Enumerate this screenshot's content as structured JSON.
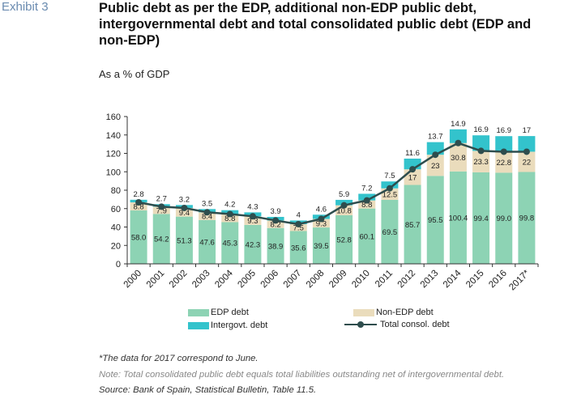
{
  "header": {
    "exhibit": "Exhibit 3",
    "title": "Public debt as per the EDP, additional non-EDP public debt, intergovernmental debt and total consolidated public debt (EDP and non-EDP)",
    "subtitle": "As a % of GDP"
  },
  "chart_data": {
    "type": "bar",
    "stacked": true,
    "categories": [
      "2000",
      "2001",
      "2002",
      "2003",
      "2004",
      "2005",
      "2006",
      "2007",
      "2008",
      "2009",
      "2010",
      "2011",
      "2012",
      "2013",
      "2014",
      "2015",
      "2016",
      "2017*"
    ],
    "series": [
      {
        "name": "EDP debt",
        "color": "#8dd3b4",
        "values": [
          58.0,
          54.2,
          51.3,
          47.6,
          45.3,
          42.3,
          38.9,
          35.6,
          39.5,
          52.8,
          60.1,
          69.5,
          85.7,
          95.5,
          100.4,
          99.4,
          99.0,
          99.8
        ]
      },
      {
        "name": "Non-EDP debt",
        "color": "#eadcbc",
        "values": [
          8.8,
          7.9,
          9.4,
          8.4,
          8.8,
          9.3,
          8.2,
          7.5,
          9.3,
          10.8,
          8.8,
          12.5,
          17,
          23,
          30.8,
          23.3,
          22.8,
          22
        ]
      },
      {
        "name": "Intergovt. debt",
        "color": "#33c3cc",
        "values": [
          2.8,
          2.7,
          3.2,
          3.5,
          4.2,
          4.3,
          3.9,
          4,
          4.6,
          5.9,
          7.2,
          7.5,
          11.6,
          13.7,
          14.9,
          16.9,
          16.9,
          17
        ]
      },
      {
        "name": "Total consol. debt",
        "type": "line",
        "color": "#2e4d4d",
        "values": [
          66.8,
          62.1,
          60.7,
          56.0,
          54.1,
          51.6,
          47.1,
          43.1,
          48.8,
          63.6,
          68.9,
          82.0,
          102.7,
          118.5,
          131.2,
          122.7,
          121.8,
          121.8
        ]
      }
    ],
    "value_labels": {
      "edp": [
        "58.0",
        "54.2",
        "51.3",
        "47.6",
        "45.3",
        "42.3",
        "38.9",
        "35.6",
        "39.5",
        "52.8",
        "60.1",
        "69.5",
        "85.7",
        "95.5",
        "100.4",
        "99.4",
        "99.0",
        "99.8"
      ],
      "non_edp": [
        "8.8",
        "7.9",
        "9.4",
        "8.4",
        "8.8",
        "9.3",
        "8.2",
        "7.5",
        "9.3",
        "10.8",
        "8.8",
        "12.5",
        "17",
        "23",
        "30.8",
        "23.3",
        "22.8",
        "22"
      ],
      "intergovt": [
        "2.8",
        "2.7",
        "3.2",
        "3.5",
        "4.2",
        "4.3",
        "3.9",
        "4",
        "4.6",
        "5.9",
        "7.2",
        "7.5",
        "11.6",
        "13.7",
        "14.9",
        "16.9",
        "16.9",
        "17"
      ]
    },
    "ylim": [
      0,
      160
    ],
    "yticks": [
      "0",
      "20",
      "40",
      "60",
      "80",
      "100",
      "120",
      "140",
      "160"
    ],
    "grid": false,
    "legend_position": "bottom"
  },
  "legend": {
    "edp": "EDP debt",
    "non_edp": "Non-EDP debt",
    "intergovt": "Intergovt. debt",
    "total": "Total consol. debt"
  },
  "notes": {
    "footnote": "*The data for 2017 correspond to June.",
    "note": "Note: Total consolidated public debt equals total liabilities outstanding net of intergovernmental debt.",
    "source": "Source: Bank of Spain, Statistical Bulletin, Table 11.5."
  }
}
